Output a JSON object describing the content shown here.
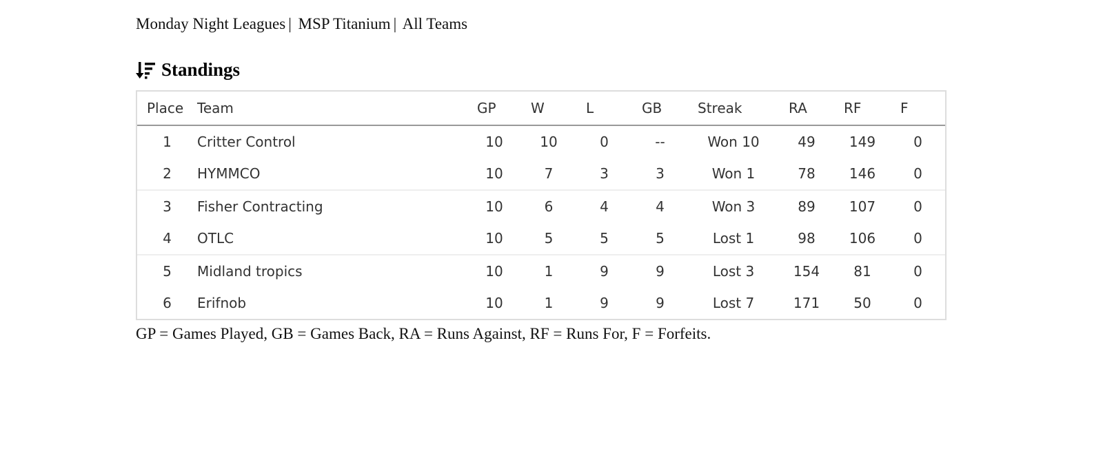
{
  "breadcrumb": [
    "Monday Night Leagues",
    "MSP Titanium",
    "All Teams"
  ],
  "heading": {
    "icon": "sort-descending-icon",
    "title": "Standings"
  },
  "table": {
    "columns": [
      "Place",
      "Team",
      "GP",
      "W",
      "L",
      "GB",
      "Streak",
      "RA",
      "RF",
      "F"
    ],
    "rows": [
      [
        "1",
        "Critter Control",
        "10",
        "10",
        "0",
        "--",
        "Won 10",
        "49",
        "149",
        "0"
      ],
      [
        "2",
        "HYMMCO",
        "10",
        "7",
        "3",
        "3",
        "Won 1",
        "78",
        "146",
        "0"
      ],
      [
        "3",
        "Fisher Contracting",
        "10",
        "6",
        "4",
        "4",
        "Won 3",
        "89",
        "107",
        "0"
      ],
      [
        "4",
        "OTLC",
        "10",
        "5",
        "5",
        "5",
        "Lost 1",
        "98",
        "106",
        "0"
      ],
      [
        "5",
        "Midland tropics",
        "10",
        "1",
        "9",
        "9",
        "Lost 3",
        "154",
        "81",
        "0"
      ],
      [
        "6",
        "Erifnob",
        "10",
        "1",
        "9",
        "9",
        "Lost 7",
        "171",
        "50",
        "0"
      ]
    ]
  },
  "footnote": "GP = Games Played, GB = Games Back, RA = Runs Against, RF = Runs For, F = Forfeits."
}
